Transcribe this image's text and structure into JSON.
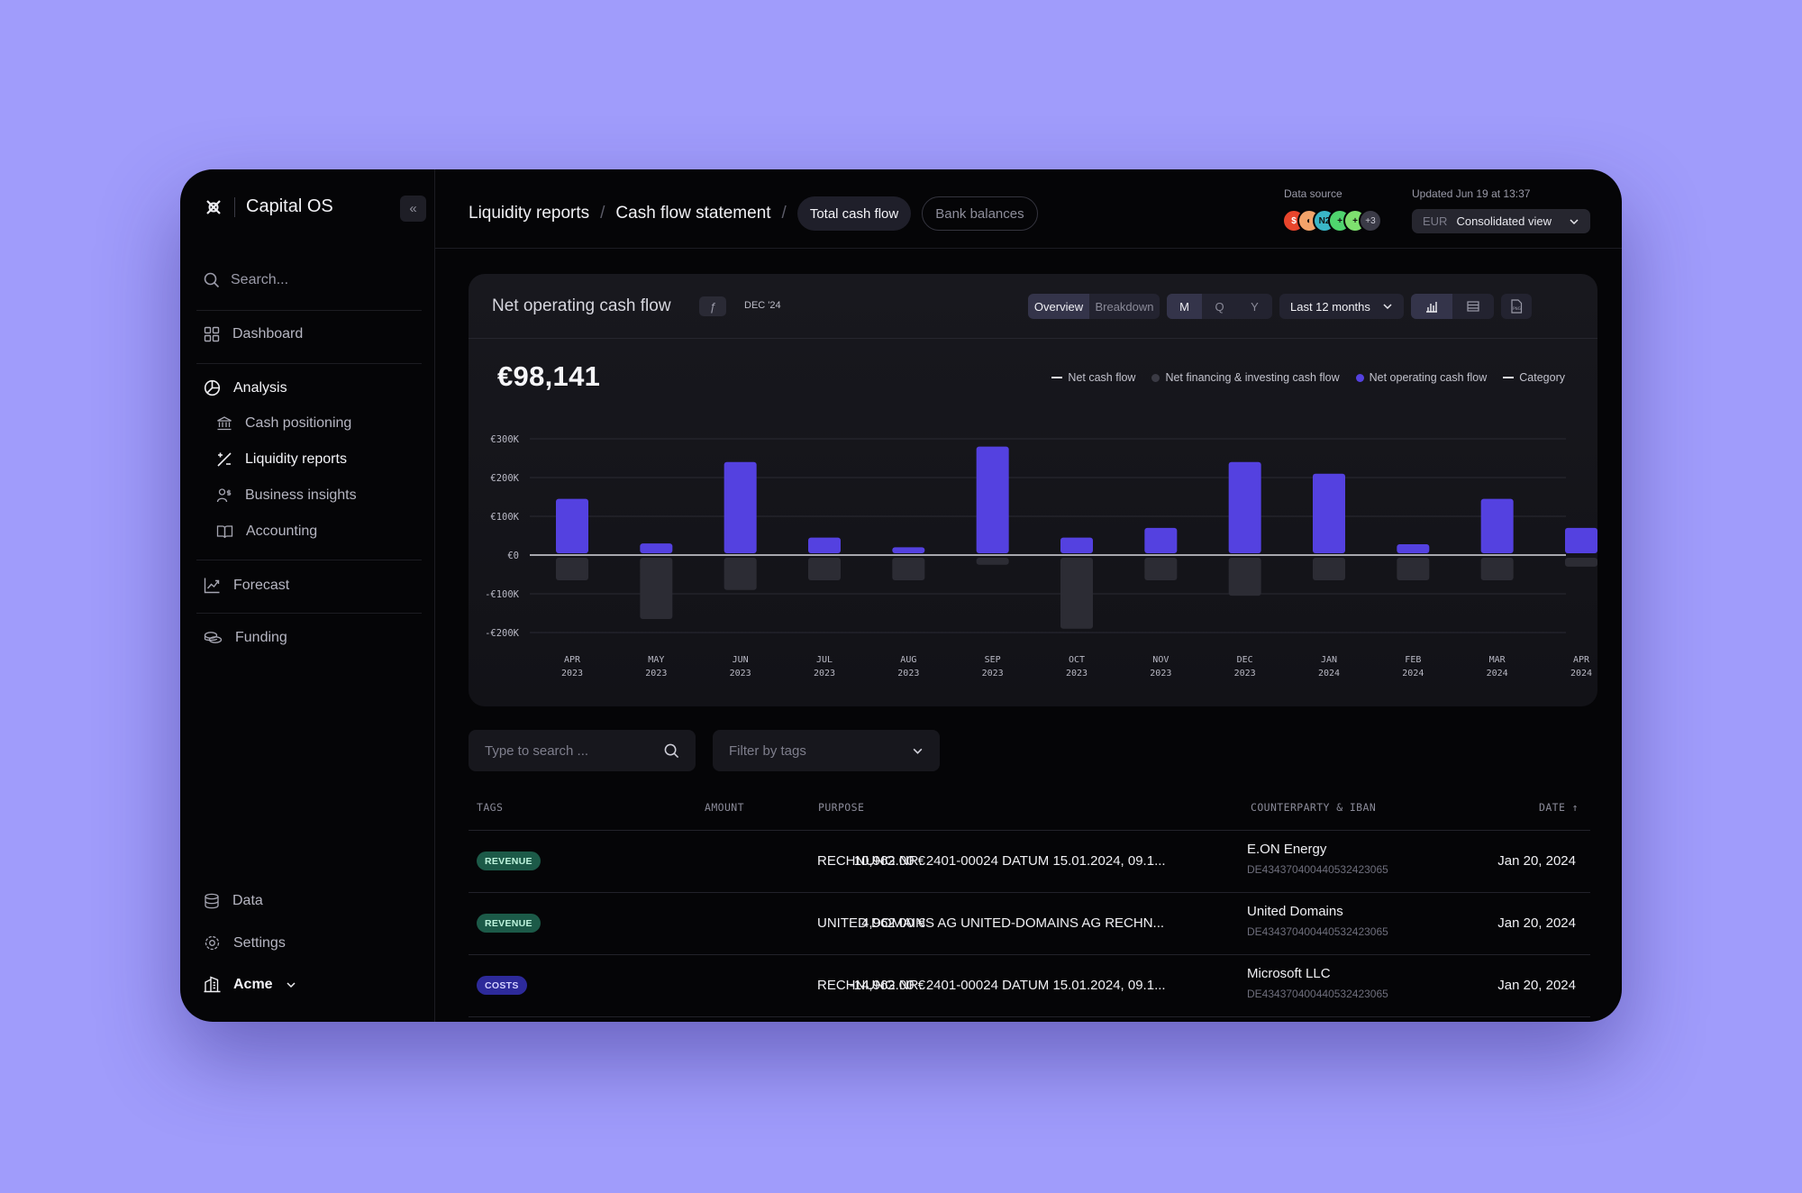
{
  "app": {
    "name": "Capital OS"
  },
  "sidebar": {
    "search_placeholder": "Search...",
    "items": {
      "dashboard": "Dashboard",
      "analysis": "Analysis",
      "cash_positioning": "Cash positioning",
      "liquidity_reports": "Liquidity reports",
      "business_insights": "Business insights",
      "accounting": "Accounting",
      "forecast": "Forecast",
      "funding": "Funding",
      "data": "Data",
      "settings": "Settings",
      "org": "Acme"
    }
  },
  "header": {
    "breadcrumb_1": "Liquidity reports",
    "breadcrumb_2": "Cash flow statement",
    "tab_active": "Total cash flow",
    "tab_other": "Bank balances",
    "data_source_label": "Data source",
    "data_source_more": "+3",
    "updated_label": "Updated Jun 19 at 13:37",
    "currency": "EUR",
    "view": "Consolidated view"
  },
  "card": {
    "title": "Net operating cash flow",
    "date": "DEC '24",
    "overview": "Overview",
    "breakdown": "Breakdown",
    "periods": [
      "M",
      "Q",
      "Y"
    ],
    "range": "Last 12 months",
    "total": "€98,141",
    "legend": {
      "net": "Net cash flow",
      "financing": "Net financing & investing cash flow",
      "operating": "Net operating cash flow",
      "category": "Category"
    },
    "colors": {
      "operating": "#5441e0",
      "financing": "#2c2c34"
    }
  },
  "chart_data": {
    "type": "bar",
    "categories": [
      "APR 2023",
      "MAY 2023",
      "JUN 2023",
      "JUL 2023",
      "AUG 2023",
      "SEP 2023",
      "OCT 2023",
      "NOV 2023",
      "DEC 2023",
      "JAN 2024",
      "FEB 2024",
      "MAR 2024",
      "APR 2024"
    ],
    "tick_top": [
      "APR",
      "MAY",
      "JUN",
      "JUL",
      "AUG",
      "SEP",
      "OCT",
      "NOV",
      "DEC",
      "JAN",
      "FEB",
      "MAR",
      "APR"
    ],
    "tick_bottom": [
      "2023",
      "2023",
      "2023",
      "2023",
      "2023",
      "2023",
      "2023",
      "2023",
      "2023",
      "2024",
      "2024",
      "2024",
      "2024"
    ],
    "series": [
      {
        "name": "Net operating cash flow",
        "values": [
          145,
          30,
          240,
          45,
          20,
          280,
          45,
          70,
          240,
          210,
          28,
          145,
          70
        ]
      },
      {
        "name": "Net financing & investing cash flow",
        "values": [
          -65,
          -165,
          -90,
          -65,
          -65,
          -25,
          -190,
          -65,
          -105,
          -65,
          -65,
          -65,
          -30
        ]
      }
    ],
    "ylim": [
      -200,
      300
    ],
    "yticks": [
      300,
      200,
      100,
      0,
      -100,
      -200
    ],
    "ytick_labels": [
      "€300K",
      "€200K",
      "€100K",
      "€0",
      "-€100K",
      "-€200K"
    ],
    "grid": true,
    "legend_position": "top-right"
  },
  "filters": {
    "search_placeholder": "Type to search ...",
    "tags_placeholder": "Filter by tags"
  },
  "table": {
    "headers": {
      "tags": "TAGS",
      "amount": "AMOUNT",
      "purpose": "PURPOSE",
      "counterparty": "COUNTERPARTY & IBAN",
      "date": "DATE ↑"
    },
    "rows": [
      {
        "tag": "REVENUE",
        "amount": "10,962.00 €",
        "purpose": "RECHNUNG NR. 2401-00024 DATUM 15.01.2024, 09.1...",
        "counterparty": "E.ON Energy",
        "iban": "DE43437040044053242306​5",
        "date": "Jan 20, 2024"
      },
      {
        "tag": "REVENUE",
        "amount": "4,962.00 €",
        "purpose": "UNITED DOMAINS AG UNITED-DOMAINS AG RECHN...",
        "counterparty": "United Domains",
        "iban": "DE434370400440532423065",
        "date": "Jan 20, 2024"
      },
      {
        "tag": "COSTS",
        "amount": "-14,962.00 €",
        "purpose": "RECHNUNG NR. 2401-00024 DATUM 15.01.2024, 09.1...",
        "counterparty": "Microsoft LLC",
        "iban": "DE434370400440532423065",
        "date": "Jan 20, 2024"
      }
    ]
  }
}
